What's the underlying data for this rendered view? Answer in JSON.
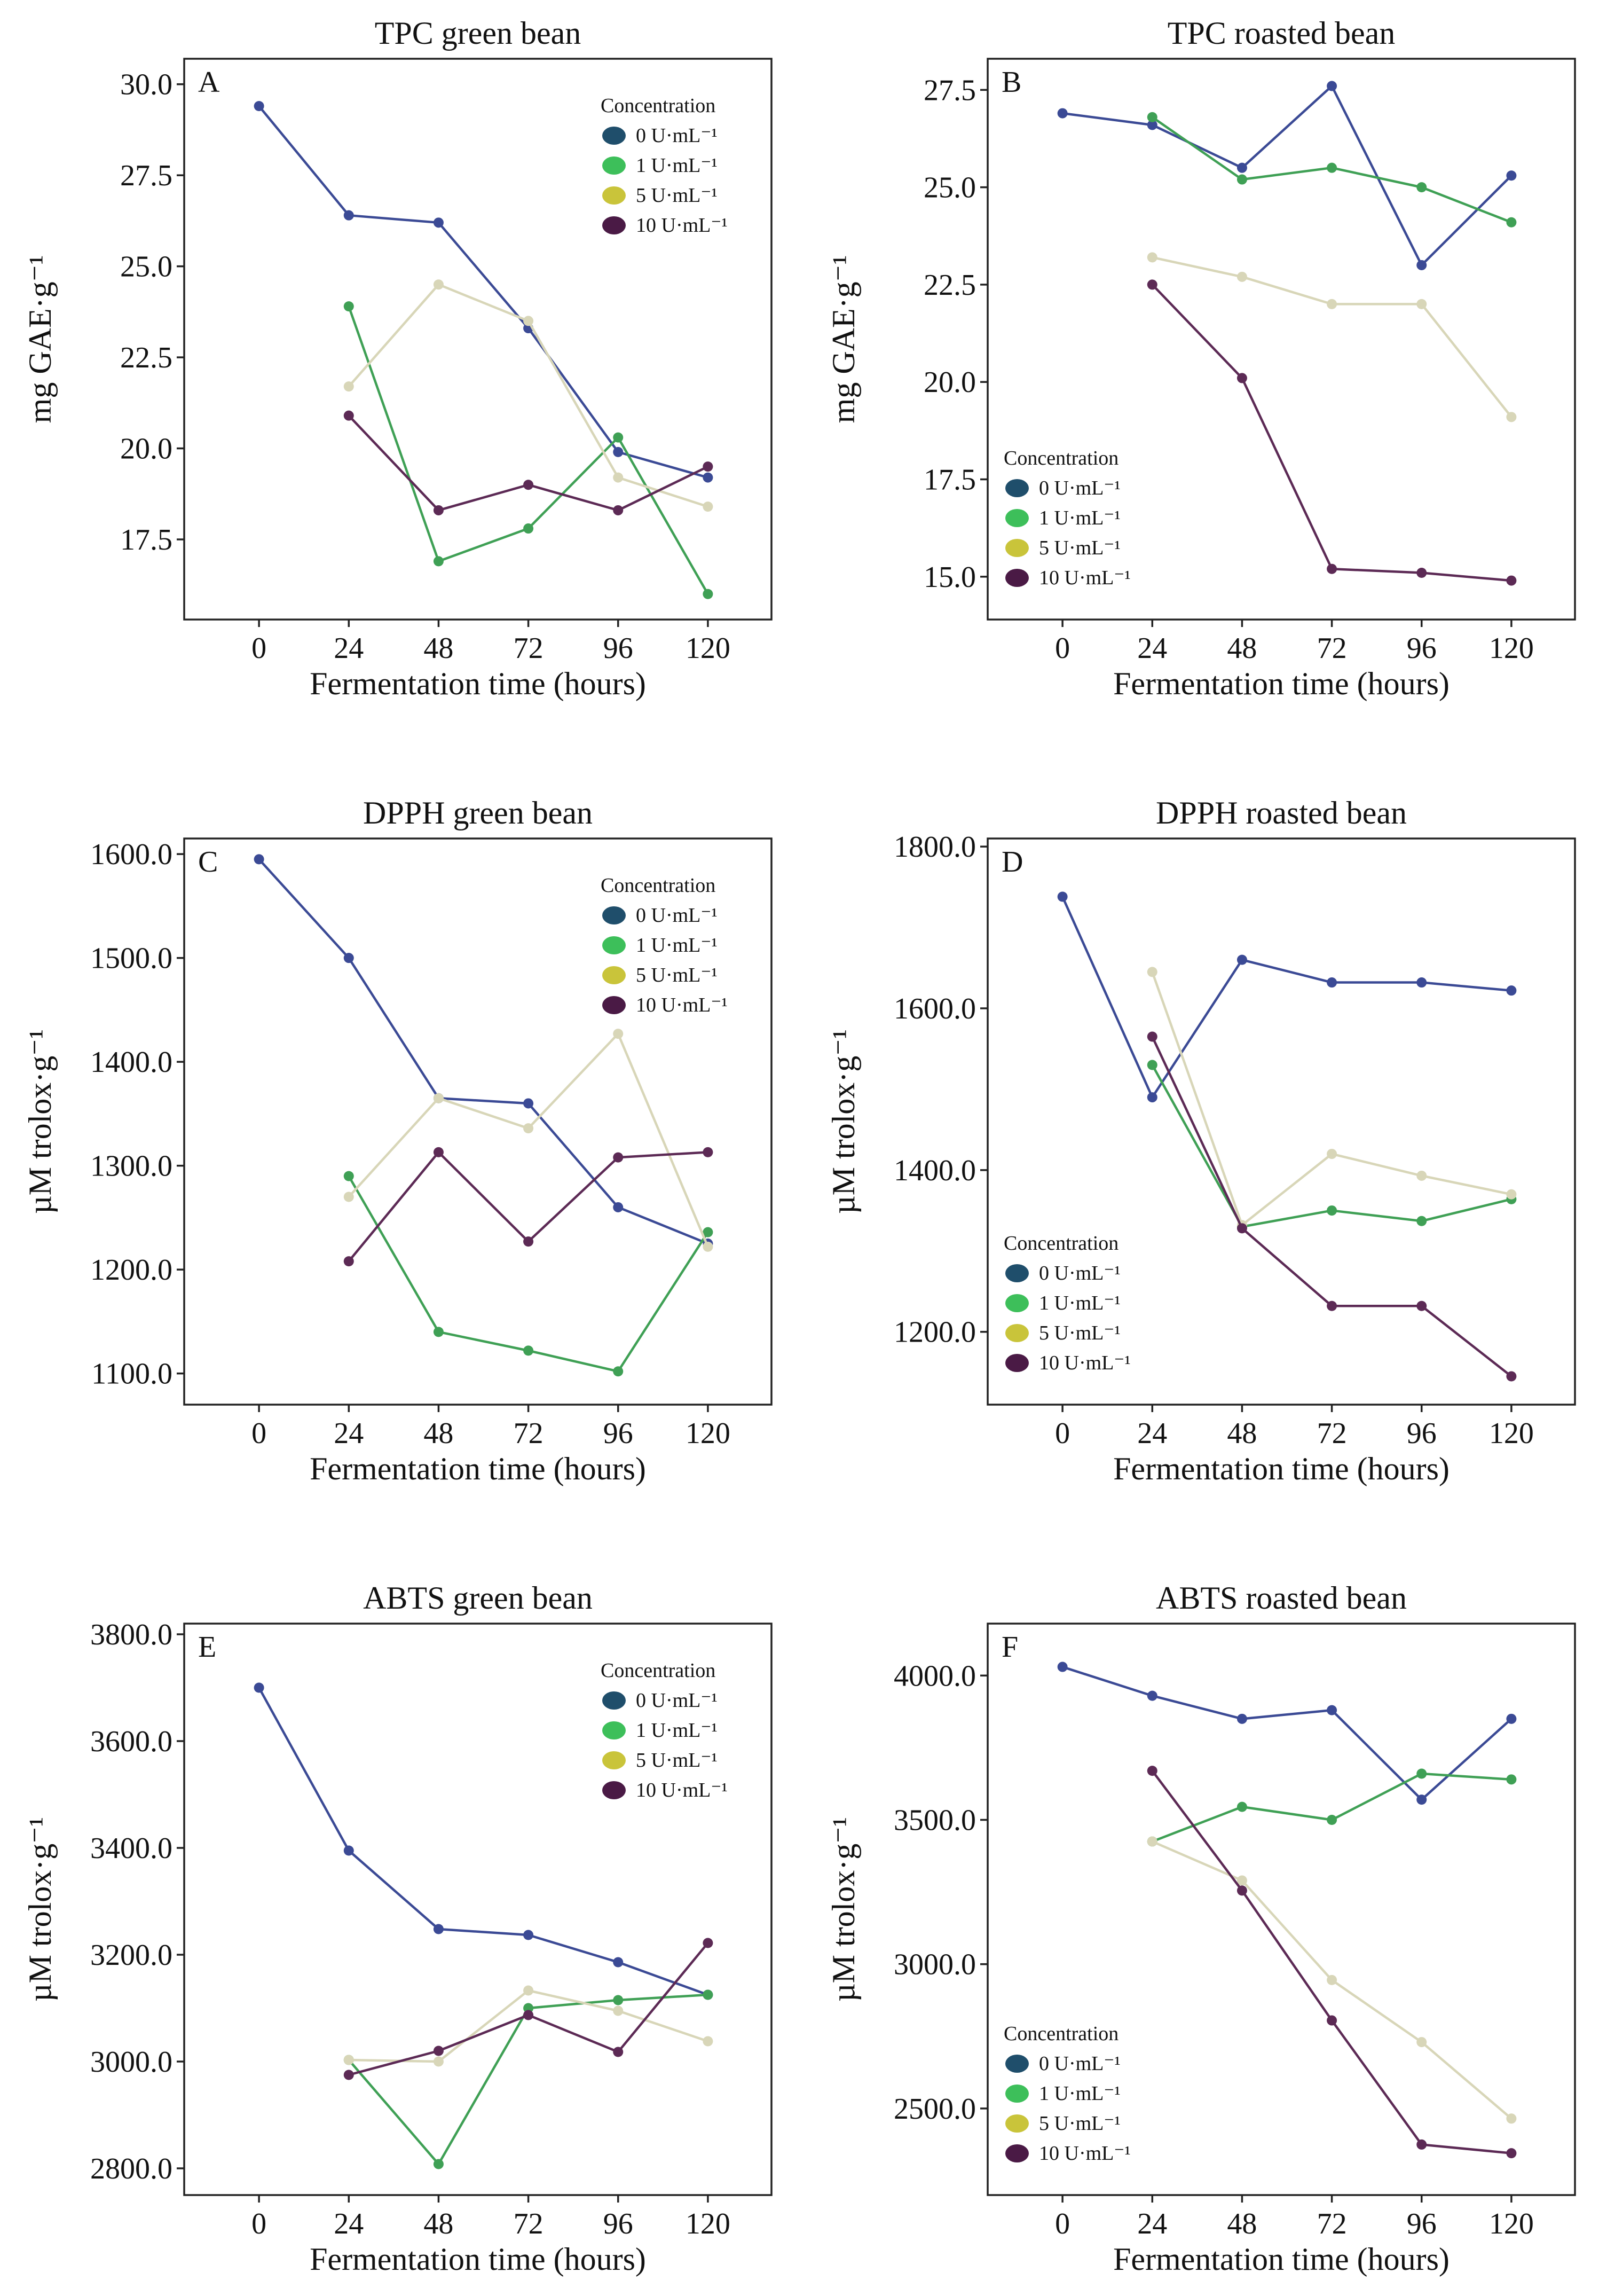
{
  "legend_title": "Concentration",
  "series_names": [
    "0 U·mL⁻¹",
    "1 U·mL⁻¹",
    "5 U·mL⁻¹",
    "10 U·mL⁻¹"
  ],
  "legend_dot_colors": [
    "#1f4e6b",
    "#3dbf5a",
    "#c9c43a",
    "#4a1a45"
  ],
  "line_colors": [
    "#3b4a95",
    "#3fa055",
    "#d8d6b8",
    "#5c2a55"
  ],
  "point_colors": [
    "#3b4a95",
    "#3fa055",
    "#d8d6b8",
    "#5c2a55"
  ],
  "chart_data": [
    {
      "type": "line",
      "panel": "A",
      "title": "TPC green bean",
      "xlabel": "Fermentation time (hours)",
      "ylabel": "mg GAE·g⁻¹",
      "x_ticks": [
        0,
        24,
        48,
        72,
        96,
        120
      ],
      "y_ticks": [
        17.5,
        20.0,
        22.5,
        25.0,
        27.5,
        30.0
      ],
      "y_tick_labels": [
        "17.5",
        "20.0",
        "22.5",
        "25.0",
        "27.5",
        "30.0"
      ],
      "xlim": [
        -20,
        137
      ],
      "ylim": [
        15.3,
        30.7
      ],
      "legend_position": "top-right",
      "series": [
        {
          "name": "0 U·mL⁻¹",
          "x": [
            0,
            24,
            48,
            72,
            96,
            120
          ],
          "values": [
            29.4,
            26.4,
            26.2,
            23.3,
            19.9,
            19.2
          ]
        },
        {
          "name": "1 U·mL⁻¹",
          "x": [
            24,
            48,
            72,
            96,
            120
          ],
          "values": [
            23.9,
            16.9,
            17.8,
            20.3,
            16.0
          ]
        },
        {
          "name": "5 U·mL⁻¹",
          "x": [
            24,
            48,
            72,
            96,
            120
          ],
          "values": [
            21.7,
            24.5,
            23.5,
            19.2,
            18.4
          ]
        },
        {
          "name": "10 U·mL⁻¹",
          "x": [
            24,
            48,
            72,
            96,
            120
          ],
          "values": [
            20.9,
            18.3,
            19.0,
            18.3,
            19.5
          ]
        }
      ]
    },
    {
      "type": "line",
      "panel": "B",
      "title": "TPC roasted bean",
      "xlabel": "Fermentation time (hours)",
      "ylabel": "mg GAE·g⁻¹",
      "x_ticks": [
        0,
        24,
        48,
        72,
        96,
        120
      ],
      "y_ticks": [
        15.0,
        17.5,
        20.0,
        22.5,
        25.0,
        27.5
      ],
      "y_tick_labels": [
        "15.0",
        "17.5",
        "20.0",
        "22.5",
        "25.0",
        "27.5"
      ],
      "xlim": [
        -20,
        137
      ],
      "ylim": [
        13.9,
        28.3
      ],
      "legend_position": "bottom-left",
      "series": [
        {
          "name": "0 U·mL⁻¹",
          "x": [
            0,
            24,
            48,
            72,
            96,
            120
          ],
          "values": [
            26.9,
            26.6,
            25.5,
            27.6,
            23.0,
            25.3
          ]
        },
        {
          "name": "1 U·mL⁻¹",
          "x": [
            24,
            48,
            72,
            96,
            120
          ],
          "values": [
            26.8,
            25.2,
            25.5,
            25.0,
            24.1
          ]
        },
        {
          "name": "5 U·mL⁻¹",
          "x": [
            24,
            48,
            72,
            96,
            120
          ],
          "values": [
            23.2,
            22.7,
            22.0,
            22.0,
            19.1
          ]
        },
        {
          "name": "10 U·mL⁻¹",
          "x": [
            24,
            48,
            72,
            96,
            120
          ],
          "values": [
            22.5,
            20.1,
            15.2,
            15.1,
            14.9
          ]
        }
      ]
    },
    {
      "type": "line",
      "panel": "C",
      "title": "DPPH green bean",
      "xlabel": "Fermentation time (hours)",
      "ylabel": "µM trolox·g⁻¹",
      "x_ticks": [
        0,
        24,
        48,
        72,
        96,
        120
      ],
      "y_ticks": [
        1100,
        1200,
        1300,
        1400,
        1500,
        1600
      ],
      "y_tick_labels": [
        "1100.0",
        "1200.0",
        "1300.0",
        "1400.0",
        "1500.0",
        "1600.0"
      ],
      "xlim": [
        -20,
        137
      ],
      "ylim": [
        1070,
        1615
      ],
      "legend_position": "top-right",
      "series": [
        {
          "name": "0 U·mL⁻¹",
          "x": [
            0,
            24,
            48,
            72,
            96,
            120
          ],
          "values": [
            1595,
            1500,
            1365,
            1360,
            1260,
            1225
          ]
        },
        {
          "name": "1 U·mL⁻¹",
          "x": [
            24,
            48,
            72,
            96,
            120
          ],
          "values": [
            1290,
            1140,
            1122,
            1102,
            1236
          ]
        },
        {
          "name": "5 U·mL⁻¹",
          "x": [
            24,
            48,
            72,
            96,
            120
          ],
          "values": [
            1270,
            1365,
            1336,
            1427,
            1222
          ]
        },
        {
          "name": "10 U·mL⁻¹",
          "x": [
            24,
            48,
            72,
            96,
            120
          ],
          "values": [
            1208,
            1313,
            1227,
            1308,
            1313
          ]
        }
      ]
    },
    {
      "type": "line",
      "panel": "D",
      "title": "DPPH roasted bean",
      "xlabel": "Fermentation time (hours)",
      "ylabel": "µM trolox·g⁻¹",
      "x_ticks": [
        0,
        24,
        48,
        72,
        96,
        120
      ],
      "y_ticks": [
        1200,
        1400,
        1600,
        1800
      ],
      "y_tick_labels": [
        "1200.0",
        "1400.0",
        "1600.0",
        "1800.0"
      ],
      "xlim": [
        -20,
        137
      ],
      "ylim": [
        1110,
        1810
      ],
      "legend_position": "bottom-left",
      "series": [
        {
          "name": "0 U·mL⁻¹",
          "x": [
            0,
            24,
            48,
            72,
            96,
            120
          ],
          "values": [
            1738,
            1490,
            1660,
            1632,
            1632,
            1622
          ]
        },
        {
          "name": "1 U·mL⁻¹",
          "x": [
            24,
            48,
            72,
            96,
            120
          ],
          "values": [
            1530,
            1330,
            1350,
            1337,
            1364
          ]
        },
        {
          "name": "5 U·mL⁻¹",
          "x": [
            24,
            48,
            72,
            96,
            120
          ],
          "values": [
            1645,
            1332,
            1420,
            1393,
            1370
          ]
        },
        {
          "name": "10 U·mL⁻¹",
          "x": [
            24,
            48,
            72,
            96,
            120
          ],
          "values": [
            1565,
            1328,
            1232,
            1232,
            1145
          ]
        }
      ]
    },
    {
      "type": "line",
      "panel": "E",
      "title": "ABTS green bean",
      "xlabel": "Fermentation time (hours)",
      "ylabel": "µM trolox·g⁻¹",
      "x_ticks": [
        0,
        24,
        48,
        72,
        96,
        120
      ],
      "y_ticks": [
        2800,
        3000,
        3200,
        3400,
        3600,
        3800
      ],
      "y_tick_labels": [
        "2800.0",
        "3000.0",
        "3200.0",
        "3400.0",
        "3600.0",
        "3800.0"
      ],
      "xlim": [
        -20,
        137
      ],
      "ylim": [
        2750,
        3820
      ],
      "legend_position": "top-right",
      "series": [
        {
          "name": "0 U·mL⁻¹",
          "x": [
            0,
            24,
            48,
            72,
            96,
            120
          ],
          "values": [
            3700,
            3395,
            3248,
            3237,
            3186,
            3125
          ]
        },
        {
          "name": "1 U·mL⁻¹",
          "x": [
            24,
            48,
            72,
            96,
            120
          ],
          "values": [
            3003,
            2808,
            3100,
            3115,
            3125
          ]
        },
        {
          "name": "5 U·mL⁻¹",
          "x": [
            24,
            48,
            72,
            96,
            120
          ],
          "values": [
            3003,
            3000,
            3133,
            3095,
            3038
          ]
        },
        {
          "name": "10 U·mL⁻¹",
          "x": [
            24,
            48,
            72,
            96,
            120
          ],
          "values": [
            2975,
            3020,
            3087,
            3018,
            3222
          ]
        }
      ]
    },
    {
      "type": "line",
      "panel": "F",
      "title": "ABTS roasted bean",
      "xlabel": "Fermentation time (hours)",
      "ylabel": "µM trolox·g⁻¹",
      "x_ticks": [
        0,
        24,
        48,
        72,
        96,
        120
      ],
      "y_ticks": [
        2500,
        3000,
        3500,
        4000
      ],
      "y_tick_labels": [
        "2500.0",
        "3000.0",
        "3500.0",
        "4000.0"
      ],
      "xlim": [
        -20,
        137
      ],
      "ylim": [
        2200,
        4180
      ],
      "legend_position": "bottom-left",
      "series": [
        {
          "name": "0 U·mL⁻¹",
          "x": [
            0,
            24,
            48,
            72,
            96,
            120
          ],
          "values": [
            4030,
            3930,
            3850,
            3880,
            3570,
            3850
          ]
        },
        {
          "name": "1 U·mL⁻¹",
          "x": [
            24,
            48,
            72,
            96,
            120
          ],
          "values": [
            3425,
            3545,
            3500,
            3660,
            3640
          ]
        },
        {
          "name": "5 U·mL⁻¹",
          "x": [
            24,
            48,
            72,
            96,
            120
          ],
          "values": [
            3425,
            3290,
            2945,
            2730,
            2465
          ]
        },
        {
          "name": "10 U·mL⁻¹",
          "x": [
            24,
            48,
            72,
            96,
            120
          ],
          "values": [
            3670,
            3255,
            2805,
            2375,
            2345
          ]
        }
      ]
    }
  ]
}
